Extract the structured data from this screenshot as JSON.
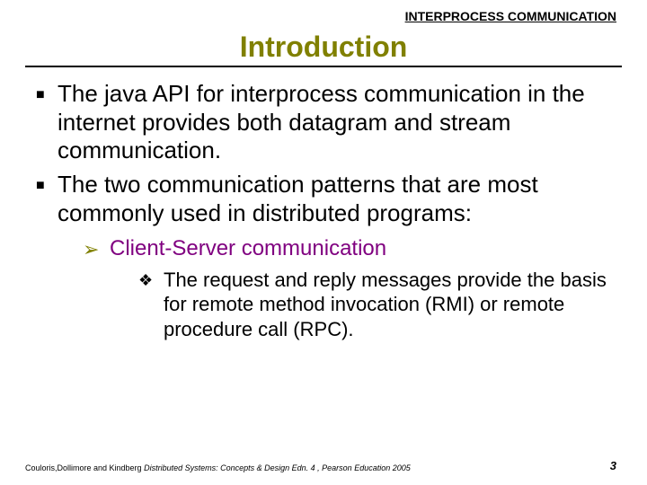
{
  "header_label": "INTERPROCESS COMMUNICATION",
  "title": "Introduction",
  "colors": {
    "title": "#808000",
    "lvl2_text": "#800080",
    "lvl2_bullet": "#808000",
    "text": "#000000",
    "background": "#ffffff",
    "rule": "#000000"
  },
  "typography": {
    "title_fontsize": 32,
    "lvl1_fontsize": 26,
    "lvl2_fontsize": 24,
    "lvl3_fontsize": 22,
    "header_fontsize": 14,
    "footer_fontsize": 9,
    "pagenum_fontsize": 13,
    "font_family": "Arial"
  },
  "bullets": {
    "lvl1_glyph": "■",
    "lvl2_glyph": "➢",
    "lvl3_glyph": "❖"
  },
  "body": {
    "items": [
      {
        "text": "The java API for interprocess communication in the internet provides both datagram and stream communication."
      },
      {
        "text": "The two communication patterns that are most commonly used in distributed programs:",
        "children": [
          {
            "text": "Client-Server communication",
            "children": [
              {
                "text": "The request and reply messages provide the basis for remote method invocation (RMI) or remote procedure call (RPC)."
              }
            ]
          }
        ]
      }
    ]
  },
  "footer": {
    "citation_authors": "Couloris,Dollimore and Kindberg ",
    "citation_title": " Distributed Systems: Concepts & Design  Edn. 4 ,  Pearson Education 2005",
    "page_number": "3"
  }
}
